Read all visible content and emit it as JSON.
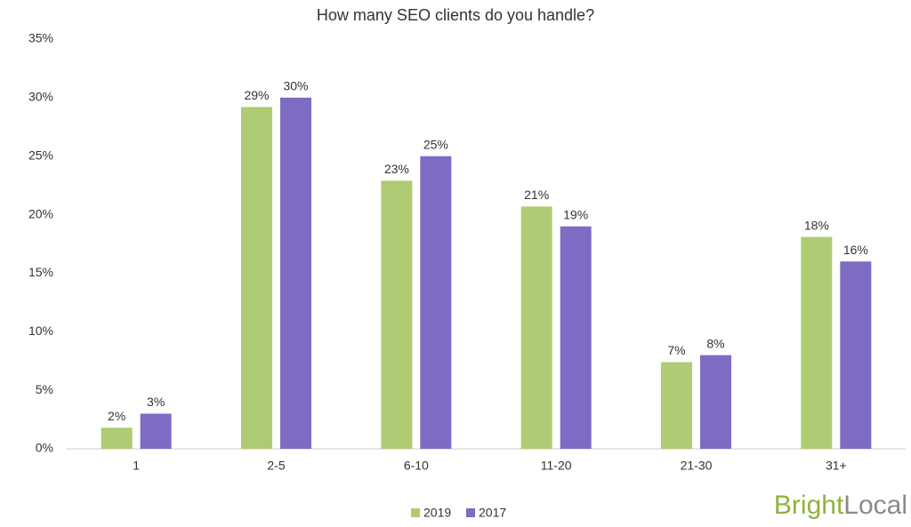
{
  "chart_data": {
    "type": "bar",
    "title": "How many SEO clients do you handle?",
    "categories": [
      "1",
      "2-5",
      "6-10",
      "11-20",
      "21-30",
      "31+"
    ],
    "series": [
      {
        "name": "2019",
        "color": "#afcb73",
        "values": [
          1.8,
          29.2,
          22.9,
          20.7,
          7.4,
          18.1
        ],
        "value_labels": [
          "2%",
          "29%",
          "23%",
          "21%",
          "7%",
          "18%"
        ]
      },
      {
        "name": "2017",
        "color": "#7e6bc4",
        "values": [
          3,
          30,
          25,
          19,
          8,
          16
        ],
        "value_labels": [
          "3%",
          "30%",
          "25%",
          "19%",
          "8%",
          "16%"
        ]
      }
    ],
    "ylim": [
      0,
      35
    ],
    "yticks": [
      {
        "value": 0,
        "label": "0%"
      },
      {
        "value": 5,
        "label": "5%"
      },
      {
        "value": 10,
        "label": "10%"
      },
      {
        "value": 15,
        "label": "15%"
      },
      {
        "value": 20,
        "label": "20%"
      },
      {
        "value": 25,
        "label": "25%"
      },
      {
        "value": 30,
        "label": "30%"
      },
      {
        "value": 35,
        "label": "35%"
      }
    ],
    "grid": false,
    "legend": "bottom"
  },
  "brand": {
    "bright": "Bright",
    "local": "Local"
  }
}
